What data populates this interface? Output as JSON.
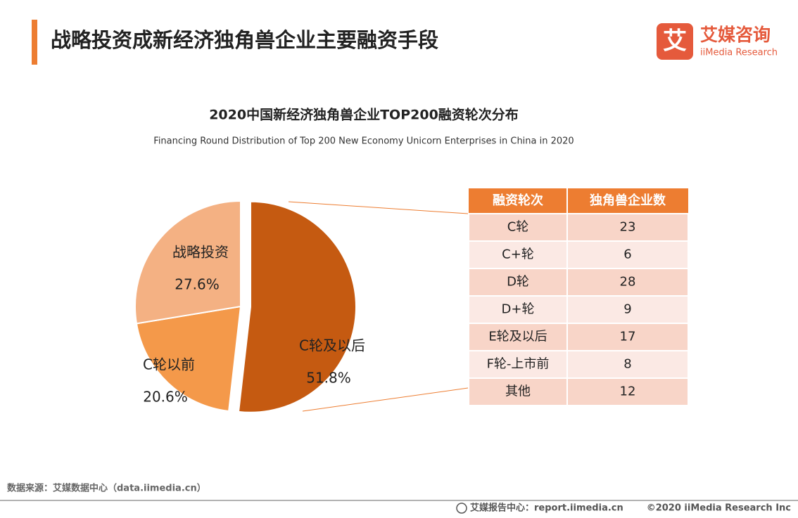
{
  "header": {
    "title": "战略投资成新经济独角兽企业主要融资手段",
    "logo_icon": "艾",
    "logo_name": "艾媒咨询",
    "logo_sub": "iiMedia Research"
  },
  "chart_data": {
    "type": "pie",
    "title": "2020中国新经济独角兽企业TOP200融资轮次分布",
    "subtitle": "Financing Round Distribution of Top 200 New Economy Unicorn Enterprises in China in 2020",
    "categories": [
      "C轮及以后",
      "C轮以前",
      "战略投资"
    ],
    "values": [
      51.8,
      20.6,
      27.6
    ],
    "value_labels": [
      "51.8%",
      "20.6%",
      "27.6%"
    ],
    "colors": [
      "#c55a11",
      "#f4994a",
      "#f4b183"
    ]
  },
  "table": {
    "columns": [
      "融资轮次",
      "独角兽企业数"
    ],
    "rows": [
      [
        "C轮",
        23
      ],
      [
        "C+轮",
        6
      ],
      [
        "D轮",
        28
      ],
      [
        "D+轮",
        9
      ],
      [
        "E轮及以后",
        17
      ],
      [
        "F轮-上市前",
        8
      ],
      [
        "其他",
        12
      ]
    ]
  },
  "footer": {
    "source": "数据来源：艾媒数据中心（data.iimedia.cn）",
    "report": "艾媒报告中心：report.iimedia.cn",
    "copyright": "©2020  iiMedia Research  Inc"
  }
}
